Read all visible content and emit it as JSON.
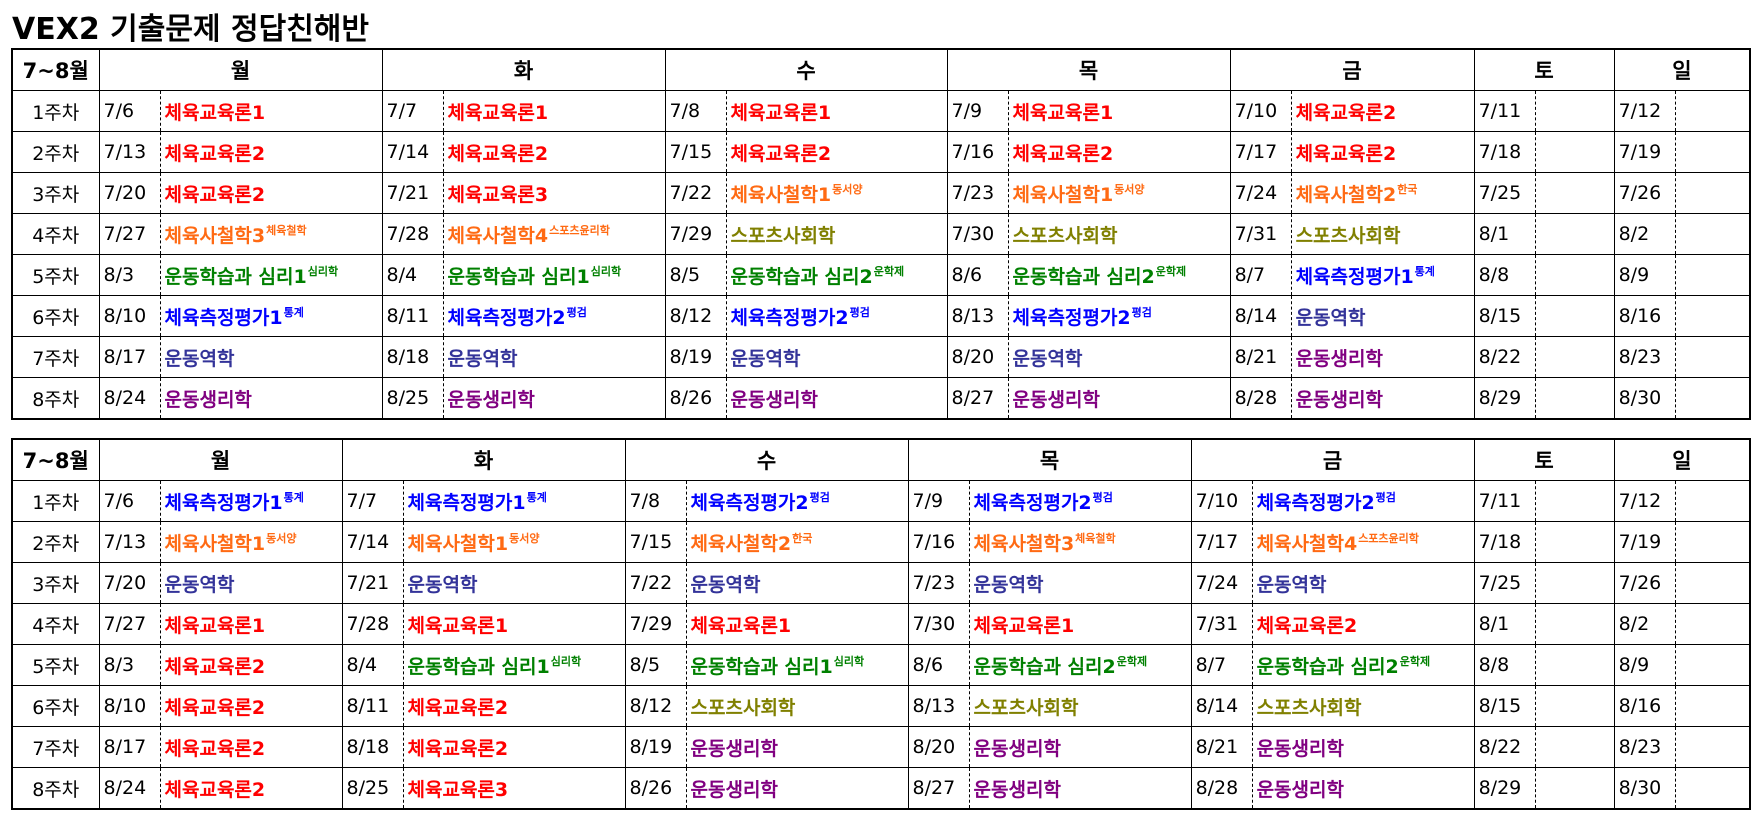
{
  "title": "VEX2 기출문제 정답친해반",
  "colors": {
    "r": "#ff0000",
    "o": "#ff6a13",
    "ol": "#808000",
    "g": "#008000",
    "b": "#0000ff",
    "i": "#333399",
    "p": "#800080"
  },
  "tables": [
    {
      "corner": "7~8월",
      "days": [
        "월",
        "화",
        "수",
        "목",
        "금",
        "토",
        "일"
      ],
      "weeks": [
        {
          "label": "1주차",
          "cells": [
            [
              "7/6",
              "체육교육론1",
              "",
              "r"
            ],
            [
              "7/7",
              "체육교육론1",
              "",
              "r"
            ],
            [
              "7/8",
              "체육교육론1",
              "",
              "r"
            ],
            [
              "7/9",
              "체육교육론1",
              "",
              "r"
            ],
            [
              "7/10",
              "체육교육론2",
              "",
              "r"
            ],
            [
              "7/11",
              "",
              "",
              ""
            ],
            [
              "7/12",
              "",
              "",
              ""
            ]
          ]
        },
        {
          "label": "2주차",
          "cells": [
            [
              "7/13",
              "체육교육론2",
              "",
              "r"
            ],
            [
              "7/14",
              "체육교육론2",
              "",
              "r"
            ],
            [
              "7/15",
              "체육교육론2",
              "",
              "r"
            ],
            [
              "7/16",
              "체육교육론2",
              "",
              "r"
            ],
            [
              "7/17",
              "체육교육론2",
              "",
              "r"
            ],
            [
              "7/18",
              "",
              "",
              ""
            ],
            [
              "7/19",
              "",
              "",
              ""
            ]
          ]
        },
        {
          "label": "3주차",
          "cells": [
            [
              "7/20",
              "체육교육론2",
              "",
              "r"
            ],
            [
              "7/21",
              "체육교육론3",
              "",
              "r"
            ],
            [
              "7/22",
              "체육사철학1",
              "동서양",
              "o"
            ],
            [
              "7/23",
              "체육사철학1",
              "동서양",
              "o"
            ],
            [
              "7/24",
              "체육사철학2",
              "한국",
              "o"
            ],
            [
              "7/25",
              "",
              "",
              ""
            ],
            [
              "7/26",
              "",
              "",
              ""
            ]
          ]
        },
        {
          "label": "4주차",
          "cells": [
            [
              "7/27",
              "체육사철학3",
              "체육철학",
              "o"
            ],
            [
              "7/28",
              "체육사철학4",
              "스포츠윤리학",
              "o"
            ],
            [
              "7/29",
              "스포츠사회학",
              "",
              "ol"
            ],
            [
              "7/30",
              "스포츠사회학",
              "",
              "ol"
            ],
            [
              "7/31",
              "스포츠사회학",
              "",
              "ol"
            ],
            [
              "8/1",
              "",
              "",
              ""
            ],
            [
              "8/2",
              "",
              "",
              ""
            ]
          ]
        },
        {
          "label": "5주차",
          "cells": [
            [
              "8/3",
              "운동학습과 심리1",
              "심리학",
              "g"
            ],
            [
              "8/4",
              "운동학습과 심리1",
              "심리학",
              "g"
            ],
            [
              "8/5",
              "운동학습과 심리2",
              "운학제",
              "g"
            ],
            [
              "8/6",
              "운동학습과 심리2",
              "운학제",
              "g"
            ],
            [
              "8/7",
              "체육측정평가1",
              "통계",
              "b"
            ],
            [
              "8/8",
              "",
              "",
              ""
            ],
            [
              "8/9",
              "",
              "",
              ""
            ]
          ]
        },
        {
          "label": "6주차",
          "cells": [
            [
              "8/10",
              "체육측정평가1",
              "통계",
              "b"
            ],
            [
              "8/11",
              "체육측정평가2",
              "평검",
              "b"
            ],
            [
              "8/12",
              "체육측정평가2",
              "평검",
              "b"
            ],
            [
              "8/13",
              "체육측정평가2",
              "평검",
              "b"
            ],
            [
              "8/14",
              "운동역학",
              "",
              "i"
            ],
            [
              "8/15",
              "",
              "",
              ""
            ],
            [
              "8/16",
              "",
              "",
              ""
            ]
          ]
        },
        {
          "label": "7주차",
          "cells": [
            [
              "8/17",
              "운동역학",
              "",
              "i"
            ],
            [
              "8/18",
              "운동역학",
              "",
              "i"
            ],
            [
              "8/19",
              "운동역학",
              "",
              "i"
            ],
            [
              "8/20",
              "운동역학",
              "",
              "i"
            ],
            [
              "8/21",
              "운동생리학",
              "",
              "p"
            ],
            [
              "8/22",
              "",
              "",
              ""
            ],
            [
              "8/23",
              "",
              "",
              ""
            ]
          ]
        },
        {
          "label": "8주차",
          "cells": [
            [
              "8/24",
              "운동생리학",
              "",
              "p"
            ],
            [
              "8/25",
              "운동생리학",
              "",
              "p"
            ],
            [
              "8/26",
              "운동생리학",
              "",
              "p"
            ],
            [
              "8/27",
              "운동생리학",
              "",
              "p"
            ],
            [
              "8/28",
              "운동생리학",
              "",
              "p"
            ],
            [
              "8/29",
              "",
              "",
              ""
            ],
            [
              "8/30",
              "",
              "",
              ""
            ]
          ]
        }
      ]
    },
    {
      "corner": "7~8월",
      "days": [
        "월",
        "화",
        "수",
        "목",
        "금",
        "토",
        "일"
      ],
      "weeks": [
        {
          "label": "1주차",
          "cells": [
            [
              "7/6",
              "체육측정평가1",
              "통계",
              "b"
            ],
            [
              "7/7",
              "체육측정평가1",
              "통계",
              "b"
            ],
            [
              "7/8",
              "체육측정평가2",
              "평검",
              "b"
            ],
            [
              "7/9",
              "체육측정평가2",
              "평검",
              "b"
            ],
            [
              "7/10",
              "체육측정평가2",
              "평검",
              "b"
            ],
            [
              "7/11",
              "",
              "",
              ""
            ],
            [
              "7/12",
              "",
              "",
              ""
            ]
          ]
        },
        {
          "label": "2주차",
          "cells": [
            [
              "7/13",
              "체육사철학1",
              "동서양",
              "o"
            ],
            [
              "7/14",
              "체육사철학1",
              "동서양",
              "o"
            ],
            [
              "7/15",
              "체육사철학2",
              "한국",
              "o"
            ],
            [
              "7/16",
              "체육사철학3",
              "체육철학",
              "o"
            ],
            [
              "7/17",
              "체육사철학4",
              "스포츠윤리학",
              "o"
            ],
            [
              "7/18",
              "",
              "",
              ""
            ],
            [
              "7/19",
              "",
              "",
              ""
            ]
          ]
        },
        {
          "label": "3주차",
          "cells": [
            [
              "7/20",
              "운동역학",
              "",
              "i"
            ],
            [
              "7/21",
              "운동역학",
              "",
              "i"
            ],
            [
              "7/22",
              "운동역학",
              "",
              "i"
            ],
            [
              "7/23",
              "운동역학",
              "",
              "i"
            ],
            [
              "7/24",
              "운동역학",
              "",
              "i"
            ],
            [
              "7/25",
              "",
              "",
              ""
            ],
            [
              "7/26",
              "",
              "",
              ""
            ]
          ]
        },
        {
          "label": "4주차",
          "cells": [
            [
              "7/27",
              "체육교육론1",
              "",
              "r"
            ],
            [
              "7/28",
              "체육교육론1",
              "",
              "r"
            ],
            [
              "7/29",
              "체육교육론1",
              "",
              "r"
            ],
            [
              "7/30",
              "체육교육론1",
              "",
              "r"
            ],
            [
              "7/31",
              "체육교육론2",
              "",
              "r"
            ],
            [
              "8/1",
              "",
              "",
              ""
            ],
            [
              "8/2",
              "",
              "",
              ""
            ]
          ]
        },
        {
          "label": "5주차",
          "cells": [
            [
              "8/3",
              "체육교육론2",
              "",
              "r"
            ],
            [
              "8/4",
              "운동학습과 심리1",
              "심리학",
              "g"
            ],
            [
              "8/5",
              "운동학습과 심리1",
              "심리학",
              "g"
            ],
            [
              "8/6",
              "운동학습과 심리2",
              "운학제",
              "g"
            ],
            [
              "8/7",
              "운동학습과 심리2",
              "운학제",
              "g"
            ],
            [
              "8/8",
              "",
              "",
              ""
            ],
            [
              "8/9",
              "",
              "",
              ""
            ]
          ]
        },
        {
          "label": "6주차",
          "cells": [
            [
              "8/10",
              "체육교육론2",
              "",
              "r"
            ],
            [
              "8/11",
              "체육교육론2",
              "",
              "r"
            ],
            [
              "8/12",
              "스포츠사회학",
              "",
              "ol"
            ],
            [
              "8/13",
              "스포츠사회학",
              "",
              "ol"
            ],
            [
              "8/14",
              "스포츠사회학",
              "",
              "ol"
            ],
            [
              "8/15",
              "",
              "",
              ""
            ],
            [
              "8/16",
              "",
              "",
              ""
            ]
          ]
        },
        {
          "label": "7주차",
          "cells": [
            [
              "8/17",
              "체육교육론2",
              "",
              "r"
            ],
            [
              "8/18",
              "체육교육론2",
              "",
              "r"
            ],
            [
              "8/19",
              "운동생리학",
              "",
              "p"
            ],
            [
              "8/20",
              "운동생리학",
              "",
              "p"
            ],
            [
              "8/21",
              "운동생리학",
              "",
              "p"
            ],
            [
              "8/22",
              "",
              "",
              ""
            ],
            [
              "8/23",
              "",
              "",
              ""
            ]
          ]
        },
        {
          "label": "8주차",
          "cells": [
            [
              "8/24",
              "체육교육론2",
              "",
              "r"
            ],
            [
              "8/25",
              "체육교육론3",
              "",
              "r"
            ],
            [
              "8/26",
              "운동생리학",
              "",
              "p"
            ],
            [
              "8/27",
              "운동생리학",
              "",
              "p"
            ],
            [
              "8/28",
              "운동생리학",
              "",
              "p"
            ],
            [
              "8/29",
              "",
              "",
              ""
            ],
            [
              "8/30",
              "",
              "",
              ""
            ]
          ]
        }
      ]
    }
  ]
}
